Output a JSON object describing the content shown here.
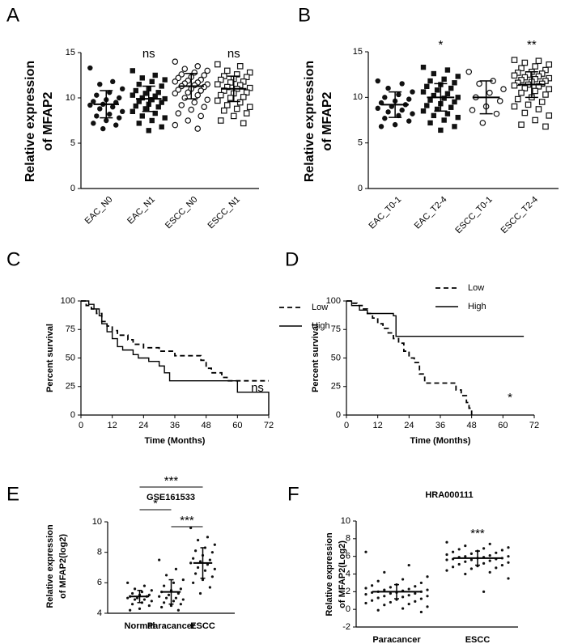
{
  "chart_data": [
    {
      "type": "dot",
      "label": "A",
      "ylabel": [
        "Relative expression",
        "of MFAP2"
      ],
      "categories": [
        "EAC_N0",
        "EAC_N1",
        "ESCC_N0",
        "ESCC_N1"
      ],
      "annotations": [
        null,
        "ns",
        null,
        "ns"
      ],
      "ylim": [
        0,
        15
      ],
      "yticks": [
        0,
        5,
        10,
        15
      ],
      "groups": [
        {
          "marker": "filled-circle",
          "mean": 9.3,
          "sd": 1.5,
          "values": [
            13.3,
            11.8,
            11.5,
            11.0,
            10.6,
            10.3,
            10.0,
            9.8,
            9.6,
            9.5,
            9.3,
            9.2,
            9.0,
            8.8,
            8.5,
            8.2,
            8.0,
            7.8,
            7.5,
            7.2,
            7.0,
            6.6
          ]
        },
        {
          "marker": "filled-square",
          "mean": 9.9,
          "sd": 1.4,
          "values": [
            13.0,
            12.5,
            12.2,
            12.0,
            11.8,
            11.5,
            11.3,
            11.0,
            10.8,
            10.6,
            10.5,
            10.3,
            10.2,
            10.0,
            9.9,
            9.8,
            9.6,
            9.5,
            9.3,
            9.1,
            9.0,
            8.8,
            8.5,
            8.3,
            8.0,
            7.8,
            7.5,
            7.2,
            6.8,
            6.4
          ]
        },
        {
          "marker": "open-circle",
          "mean": 11.3,
          "sd": 1.4,
          "values": [
            14.0,
            13.5,
            13.2,
            13.0,
            12.8,
            12.6,
            12.5,
            12.3,
            12.2,
            12.0,
            11.9,
            11.8,
            11.7,
            11.6,
            11.5,
            11.4,
            11.3,
            11.2,
            11.0,
            10.9,
            10.8,
            10.6,
            10.5,
            10.3,
            10.0,
            9.8,
            9.5,
            9.2,
            9.0,
            8.7,
            8.3,
            8.0,
            7.5,
            7.0,
            6.6
          ]
        },
        {
          "marker": "open-square",
          "mean": 11.0,
          "sd": 1.4,
          "values": [
            13.7,
            13.5,
            13.0,
            12.8,
            12.6,
            12.4,
            12.3,
            12.1,
            12.0,
            11.8,
            11.7,
            11.5,
            11.4,
            11.2,
            11.1,
            11.0,
            10.8,
            10.6,
            10.5,
            10.3,
            10.1,
            10.0,
            9.7,
            9.5,
            9.2,
            9.0,
            8.8,
            8.6,
            8.3,
            8.0,
            7.5,
            7.2
          ]
        }
      ]
    },
    {
      "type": "dot",
      "label": "B",
      "ylabel": [
        "Relative expression",
        "of MFAP2"
      ],
      "categories": [
        "EAC_T0-1",
        "EAC_T2-4",
        "ESCC_T0-1",
        "ESCC_T2-4"
      ],
      "annotations": [
        null,
        "*",
        null,
        "**"
      ],
      "ylim": [
        0,
        15
      ],
      "yticks": [
        0,
        5,
        10,
        15
      ],
      "groups": [
        {
          "marker": "filled-circle",
          "mean": 9.2,
          "sd": 1.4,
          "values": [
            11.8,
            11.5,
            11.0,
            10.6,
            10.3,
            10.0,
            9.8,
            9.6,
            9.4,
            9.2,
            9.0,
            8.8,
            8.6,
            8.4,
            8.2,
            8.0,
            7.7,
            7.4,
            7.0,
            6.8
          ]
        },
        {
          "marker": "filled-square",
          "mean": 10.0,
          "sd": 1.5,
          "values": [
            13.3,
            13.0,
            12.6,
            12.3,
            12.0,
            11.8,
            11.6,
            11.4,
            11.2,
            11.0,
            10.8,
            10.6,
            10.4,
            10.2,
            10.0,
            9.9,
            9.7,
            9.5,
            9.3,
            9.1,
            8.9,
            8.7,
            8.5,
            8.2,
            8.0,
            7.8,
            7.5,
            7.2,
            6.8,
            6.4
          ]
        },
        {
          "marker": "open-circle",
          "mean": 10.0,
          "sd": 1.8,
          "values": [
            12.8,
            11.8,
            11.5,
            10.9,
            10.5,
            10.0,
            9.6,
            9.0,
            8.6,
            8.2,
            7.2
          ]
        },
        {
          "marker": "open-square",
          "mean": 11.4,
          "sd": 1.4,
          "values": [
            14.1,
            14.0,
            13.8,
            13.6,
            13.4,
            13.2,
            13.0,
            12.8,
            12.7,
            12.6,
            12.5,
            12.4,
            12.3,
            12.2,
            12.1,
            12.0,
            11.9,
            11.8,
            11.7,
            11.6,
            11.5,
            11.4,
            11.3,
            11.2,
            11.0,
            10.9,
            10.7,
            10.5,
            10.3,
            10.0,
            9.8,
            9.5,
            9.2,
            9.0,
            8.7,
            8.3,
            8.0,
            7.5,
            7.0,
            6.8
          ]
        }
      ]
    },
    {
      "type": "survival",
      "label": "C",
      "xlabel": "Time (Months)",
      "ylabel": "Percent survival",
      "annotation": "ns",
      "xlim": [
        0,
        72
      ],
      "xticks": [
        0,
        12,
        24,
        36,
        48,
        60,
        72
      ],
      "ylim": [
        0,
        100
      ],
      "yticks": [
        0,
        25,
        50,
        75,
        100
      ],
      "series": [
        {
          "name": "Low",
          "dashed": true,
          "x": [
            0,
            2,
            2,
            4,
            4,
            6,
            6,
            8,
            8,
            10,
            10,
            12,
            12,
            14,
            14,
            18,
            18,
            20,
            20,
            24,
            24,
            30,
            30,
            36,
            36,
            46,
            46,
            48,
            48,
            50,
            50,
            54,
            54,
            56,
            56,
            72
          ],
          "values": [
            100,
            100,
            96,
            96,
            93,
            93,
            89,
            89,
            82,
            82,
            78,
            78,
            74,
            74,
            70,
            70,
            66,
            66,
            62,
            62,
            59,
            59,
            56,
            56,
            52,
            52,
            48,
            48,
            41,
            41,
            37,
            37,
            33,
            33,
            30,
            30
          ]
        },
        {
          "name": "High",
          "dashed": false,
          "x": [
            0,
            3,
            3,
            5,
            5,
            7,
            7,
            8,
            8,
            10,
            10,
            12,
            12,
            14,
            14,
            16,
            16,
            20,
            20,
            22,
            22,
            26,
            26,
            30,
            30,
            32,
            32,
            34,
            34,
            60,
            60,
            72,
            72
          ],
          "values": [
            100,
            100,
            97,
            97,
            93,
            93,
            87,
            87,
            80,
            80,
            73,
            73,
            67,
            67,
            60,
            60,
            57,
            57,
            53,
            53,
            50,
            50,
            47,
            47,
            43,
            43,
            37,
            37,
            30,
            30,
            20,
            20,
            0
          ]
        }
      ]
    },
    {
      "type": "survival",
      "label": "D",
      "xlabel": "Time (Months)",
      "ylabel": "Percent survival",
      "annotation": "*",
      "xlim": [
        0,
        72
      ],
      "xticks": [
        0,
        12,
        24,
        36,
        48,
        60,
        72
      ],
      "ylim": [
        0,
        100
      ],
      "yticks": [
        0,
        25,
        50,
        75,
        100
      ],
      "series": [
        {
          "name": "Low",
          "dashed": true,
          "x": [
            0,
            2,
            2,
            4,
            4,
            6,
            6,
            8,
            8,
            10,
            10,
            12,
            12,
            14,
            14,
            16,
            16,
            18,
            18,
            20,
            20,
            22,
            22,
            24,
            24,
            26,
            26,
            28,
            28,
            30,
            30,
            42,
            42,
            44,
            44,
            46,
            46,
            47,
            47,
            48,
            48
          ],
          "values": [
            100,
            100,
            98,
            98,
            96,
            96,
            93,
            93,
            89,
            89,
            85,
            85,
            80,
            80,
            76,
            76,
            72,
            72,
            67,
            67,
            63,
            63,
            56,
            56,
            50,
            50,
            46,
            46,
            36,
            36,
            28,
            28,
            22,
            22,
            17,
            17,
            11,
            11,
            6,
            6,
            0
          ]
        },
        {
          "name": "High",
          "dashed": false,
          "x": [
            0,
            2,
            2,
            5,
            5,
            8,
            8,
            18,
            18,
            19,
            19,
            68
          ],
          "values": [
            100,
            100,
            96,
            96,
            92,
            92,
            89,
            89,
            87,
            87,
            69,
            69
          ]
        }
      ]
    },
    {
      "type": "dot",
      "label": "E",
      "title": "GSE161533",
      "ylabel": [
        "Relative expression",
        "of MFAP2(log2)"
      ],
      "categories": [
        "Normal",
        "Paracancer",
        "ESCC"
      ],
      "brackets": [
        {
          "between": [
            "Normal",
            "ESCC"
          ],
          "text": "***"
        },
        {
          "between": [
            "Normal",
            "Paracancer"
          ],
          "text": "*"
        },
        {
          "between": [
            "Paracancer",
            "ESCC"
          ],
          "text": "***"
        }
      ],
      "ylim": [
        4,
        10
      ],
      "yticks": [
        4,
        6,
        8,
        10
      ],
      "groups": [
        {
          "marker": "small-dot",
          "mean": 5.1,
          "sd": 0.4,
          "values": [
            6.0,
            5.8,
            5.6,
            5.5,
            5.4,
            5.3,
            5.2,
            5.2,
            5.1,
            5.1,
            5.0,
            5.0,
            4.9,
            4.9,
            4.8,
            4.7,
            4.6,
            4.5,
            4.3,
            4.2
          ]
        },
        {
          "marker": "small-dot",
          "mean": 5.4,
          "sd": 0.8,
          "values": [
            7.5,
            6.9,
            6.5,
            6.2,
            6.0,
            5.8,
            5.6,
            5.5,
            5.4,
            5.3,
            5.2,
            5.1,
            5.0,
            5.0,
            4.9,
            4.8,
            4.7,
            4.6,
            4.5,
            4.4,
            4.2
          ]
        },
        {
          "marker": "small-dot",
          "mean": 7.3,
          "sd": 1.0,
          "values": [
            9.6,
            9.0,
            8.8,
            8.5,
            8.3,
            8.1,
            8.0,
            7.8,
            7.6,
            7.5,
            7.4,
            7.3,
            7.2,
            7.0,
            6.9,
            6.8,
            6.6,
            6.4,
            6.2,
            6.0,
            5.7,
            5.3
          ]
        }
      ]
    },
    {
      "type": "dot",
      "label": "F",
      "title": "HRA000111",
      "ylabel": [
        "Relative expression",
        "of MFAP2(Log2)"
      ],
      "categories": [
        "Paracancer",
        "ESCC"
      ],
      "annotations": [
        null,
        "***"
      ],
      "ylim": [
        -2,
        10
      ],
      "yticks": [
        -2,
        0,
        2,
        4,
        6,
        8,
        10
      ],
      "groups": [
        {
          "marker": "small-dot",
          "mean": 2.0,
          "sd": 0.8,
          "values": [
            6.5,
            5.0,
            4.2,
            3.7,
            3.4,
            3.2,
            3.0,
            2.8,
            2.7,
            2.6,
            2.5,
            2.4,
            2.3,
            2.2,
            2.2,
            2.1,
            2.0,
            2.0,
            1.9,
            1.9,
            1.8,
            1.8,
            1.7,
            1.6,
            1.5,
            1.5,
            1.4,
            1.3,
            1.2,
            1.1,
            1.0,
            0.9,
            0.8,
            0.7,
            0.6,
            0.5,
            0.3,
            0.1,
            -0.1,
            -0.3
          ]
        },
        {
          "marker": "small-dot",
          "mean": 5.8,
          "sd": 0.8,
          "values": [
            7.6,
            7.4,
            7.2,
            7.0,
            6.9,
            6.8,
            6.7,
            6.6,
            6.5,
            6.4,
            6.3,
            6.2,
            6.1,
            6.0,
            6.0,
            5.9,
            5.9,
            5.8,
            5.8,
            5.7,
            5.7,
            5.6,
            5.6,
            5.5,
            5.4,
            5.3,
            5.2,
            5.1,
            5.0,
            4.9,
            4.8,
            4.7,
            4.6,
            4.4,
            4.2,
            4.0,
            3.5,
            2.0
          ]
        }
      ]
    }
  ]
}
